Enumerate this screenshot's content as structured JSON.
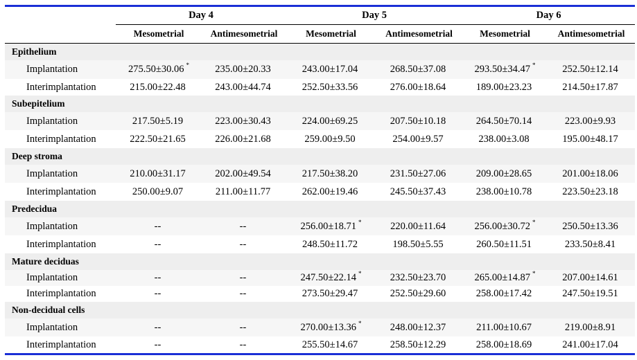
{
  "header": {
    "days": [
      "Day 4",
      "Day 5",
      "Day 6"
    ],
    "subcols": [
      "Mesometrial",
      "Antimesometrial",
      "Mesometrial",
      "Antimesometrial",
      "Mesometrial",
      "Antimesometrial"
    ]
  },
  "groups": [
    {
      "title": "Epithelium",
      "rows": [
        {
          "label": "Implantation",
          "values": [
            "275.50±30.06",
            "235.00±20.33",
            "243.00±17.04",
            "268.50±37.08",
            "293.50±34.47",
            "252.50±12.14"
          ],
          "marks": [
            "*",
            "",
            "",
            "",
            "*",
            ""
          ]
        },
        {
          "label": "Interimplantation",
          "values": [
            "215.00±22.48",
            "243.00±44.74",
            "252.50±33.56",
            "276.00±18.64",
            "189.00±23.23",
            "214.50±17.87"
          ],
          "marks": [
            "",
            "",
            "",
            "",
            "",
            ""
          ]
        }
      ]
    },
    {
      "title": "Subepitelium",
      "rows": [
        {
          "label": "Implantation",
          "values": [
            "217.50±5.19",
            "223.00±30.43",
            "224.00±69.25",
            "207.50±10.18",
            "264.50±70.14",
            "223.00±9.93"
          ],
          "marks": [
            "",
            "",
            "",
            "",
            "",
            ""
          ]
        },
        {
          "label": "Interimplantation",
          "values": [
            "222.50±21.65",
            "226.00±21.68",
            "259.00±9.50",
            "254.00±9.57",
            "238.00±3.08",
            "195.00±48.17"
          ],
          "marks": [
            "",
            "",
            "",
            "",
            "",
            ""
          ]
        }
      ]
    },
    {
      "title": "Deep stroma",
      "rows": [
        {
          "label": "Implantation",
          "values": [
            "210.00±31.17",
            "202.00±49.54",
            "217.50±38.20",
            "231.50±27.06",
            "209.00±28.65",
            "201.00±18.06"
          ],
          "marks": [
            "",
            "",
            "",
            "",
            "",
            ""
          ]
        },
        {
          "label": "Interimplantation",
          "values": [
            "250.00±9.07",
            "211.00±11.77",
            "262.00±19.46",
            "245.50±37.43",
            "238.00±10.78",
            "223.50±23.18"
          ],
          "marks": [
            "",
            "",
            "",
            "",
            "",
            ""
          ]
        }
      ]
    },
    {
      "title": "Predecidua",
      "rows": [
        {
          "label": "Implantation",
          "values": [
            "--",
            "--",
            "256.00±18.71",
            "220.00±11.64",
            "256.00±30.72",
            "250.50±13.36"
          ],
          "marks": [
            "",
            "",
            "*",
            "",
            "*",
            ""
          ]
        },
        {
          "label": "Interimplantation",
          "values": [
            "--",
            "--",
            "248.50±11.72",
            "198.50±5.55",
            "260.50±11.51",
            "233.50±8.41"
          ],
          "marks": [
            "",
            "",
            "",
            "",
            "",
            ""
          ]
        }
      ]
    },
    {
      "title": "Mature deciduas",
      "rows": [
        {
          "label": "Implantation",
          "values": [
            "--",
            "--",
            "247.50±22.14",
            "232.50±23.70",
            "265.00±14.87",
            "207.00±14.61"
          ],
          "marks": [
            "",
            "",
            "*",
            "",
            "*",
            ""
          ]
        },
        {
          "label": "Interimplantation",
          "values": [
            "--",
            "--",
            "273.50±29.47",
            "252.50±29.60",
            "258.00±17.42",
            "247.50±19.51"
          ],
          "marks": [
            "",
            "",
            "",
            "",
            "",
            ""
          ]
        }
      ]
    },
    {
      "title": "Non-decidual cells",
      "rows": [
        {
          "label": "Implantation",
          "values": [
            "--",
            "--",
            "270.00±13.36",
            "248.00±12.37",
            "211.00±10.67",
            "219.00±8.91"
          ],
          "marks": [
            "",
            "",
            "*",
            "",
            "",
            ""
          ]
        },
        {
          "label": "Interimplantation",
          "values": [
            "--",
            "--",
            "255.50±14.67",
            "258.50±12.29",
            "258.00±18.69",
            "241.00±17.04"
          ],
          "marks": [
            "",
            "",
            "",
            "",
            "",
            ""
          ]
        }
      ]
    }
  ]
}
